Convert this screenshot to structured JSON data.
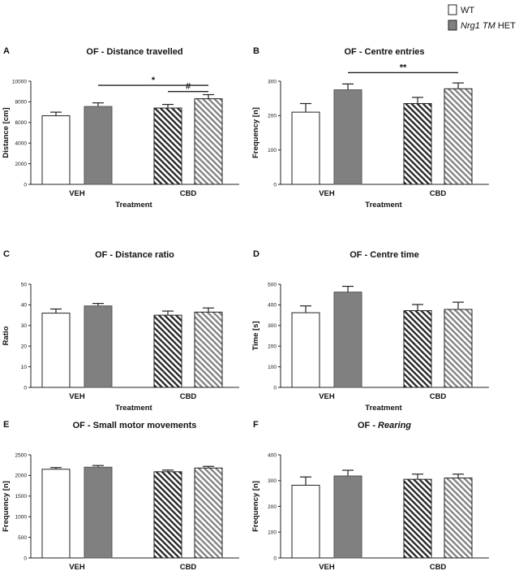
{
  "legend": {
    "wt_label": "WT",
    "het_gene": "Nrg1 TM",
    "het_suffix": " HET",
    "colors": {
      "wt": "#ffffff",
      "het": "#808080",
      "outline": "#222222"
    }
  },
  "chart_data": [
    {
      "letter": "A",
      "type": "bar",
      "title_main": "OF - Distance travelled",
      "title_italic": "",
      "ylabel": "Distance [cm]",
      "xlabel": "Treatment",
      "ylim": [
        0,
        10000
      ],
      "yticks": [
        0,
        2000,
        4000,
        6000,
        8000,
        10000
      ],
      "categories": [
        "VEH",
        "CBD"
      ],
      "series": [
        {
          "name": "WT",
          "values": [
            6650,
            7400
          ],
          "errors": [
            350,
            350
          ]
        },
        {
          "name": "Nrg1 TM HET",
          "values": [
            7550,
            8300
          ],
          "errors": [
            350,
            400
          ]
        }
      ],
      "significance": [
        {
          "label": "#",
          "from_bar": 2,
          "to_bar": 3,
          "y": 9000
        },
        {
          "label": "*",
          "from_bar": 1,
          "to_bar": 3,
          "y": 9600
        }
      ]
    },
    {
      "letter": "B",
      "type": "bar",
      "title_main": "OF - Centre entries",
      "title_italic": "",
      "ylabel": "Frequency [n]",
      "xlabel": "Treatment",
      "ylim": [
        0,
        300
      ],
      "yticks": [
        0,
        100,
        200,
        300
      ],
      "categories": [
        "VEH",
        "CBD"
      ],
      "series": [
        {
          "name": "WT",
          "values": [
            210,
            235
          ],
          "errors": [
            25,
            18
          ]
        },
        {
          "name": "Nrg1 TM HET",
          "values": [
            275,
            278
          ],
          "errors": [
            17,
            17
          ]
        }
      ],
      "significance": [
        {
          "label": "**",
          "from_bar": 1,
          "to_bar": 3,
          "y": 325
        }
      ]
    },
    {
      "letter": "C",
      "type": "bar",
      "title_main": "OF - Distance ratio",
      "title_italic": "",
      "ylabel": "Ratio",
      "xlabel": "Treatment",
      "ylim": [
        0,
        50
      ],
      "yticks": [
        0,
        10,
        20,
        30,
        40,
        50
      ],
      "categories": [
        "VEH",
        "CBD"
      ],
      "series": [
        {
          "name": "WT",
          "values": [
            36,
            35
          ],
          "errors": [
            2,
            2
          ]
        },
        {
          "name": "Nrg1 TM HET",
          "values": [
            39.5,
            36.5
          ],
          "errors": [
            1.2,
            2
          ]
        }
      ],
      "significance": []
    },
    {
      "letter": "D",
      "type": "bar",
      "title_main": "OF - Centre time",
      "title_italic": "",
      "ylabel": "Time [s]",
      "xlabel": "Treatment",
      "ylim": [
        0,
        500
      ],
      "yticks": [
        0,
        100,
        200,
        300,
        400,
        500
      ],
      "categories": [
        "VEH",
        "CBD"
      ],
      "series": [
        {
          "name": "WT",
          "values": [
            362,
            372
          ],
          "errors": [
            33,
            30
          ]
        },
        {
          "name": "Nrg1 TM HET",
          "values": [
            462,
            378
          ],
          "errors": [
            28,
            35
          ]
        }
      ],
      "significance": []
    },
    {
      "letter": "E",
      "type": "bar",
      "title_main": "OF - Small motor movements",
      "title_italic": "",
      "ylabel": "Frequency [n]",
      "xlabel": "Treatment",
      "ylim": [
        0,
        2500
      ],
      "yticks": [
        0,
        500,
        1000,
        1500,
        2000,
        2500
      ],
      "categories": [
        "VEH",
        "CBD"
      ],
      "series": [
        {
          "name": "WT",
          "values": [
            2150,
            2090
          ],
          "errors": [
            40,
            40
          ]
        },
        {
          "name": "Nrg1 TM HET",
          "values": [
            2200,
            2180
          ],
          "errors": [
            40,
            40
          ]
        }
      ],
      "significance": []
    },
    {
      "letter": "F",
      "type": "bar",
      "title_main": "OF - ",
      "title_italic": "Rearing",
      "ylabel": "Frequency [n]",
      "xlabel": "Treatment",
      "ylim": [
        0,
        400
      ],
      "yticks": [
        0,
        100,
        200,
        300,
        400
      ],
      "categories": [
        "VEH",
        "CBD"
      ],
      "series": [
        {
          "name": "WT",
          "values": [
            282,
            305
          ],
          "errors": [
            32,
            20
          ]
        },
        {
          "name": "Nrg1 TM HET",
          "values": [
            318,
            310
          ],
          "errors": [
            22,
            15
          ]
        }
      ],
      "significance": []
    }
  ]
}
